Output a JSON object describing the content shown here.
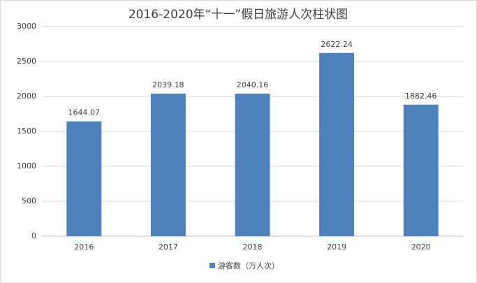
{
  "chart_data": {
    "type": "bar",
    "title": "2016-2020年“十一”假日旅游人次柱状图",
    "categories": [
      "2016",
      "2017",
      "2018",
      "2019",
      "2020"
    ],
    "series": [
      {
        "name": "游客数（万人次）",
        "color": "#4f81bd",
        "values": [
          1644.07,
          2039.18,
          2040.16,
          2622.24,
          1882.46
        ]
      }
    ],
    "ylim": [
      0,
      3000
    ],
    "yticks": [
      0,
      500,
      1000,
      1500,
      2000,
      2500,
      3000
    ],
    "grid": true,
    "legend": "bottom"
  }
}
